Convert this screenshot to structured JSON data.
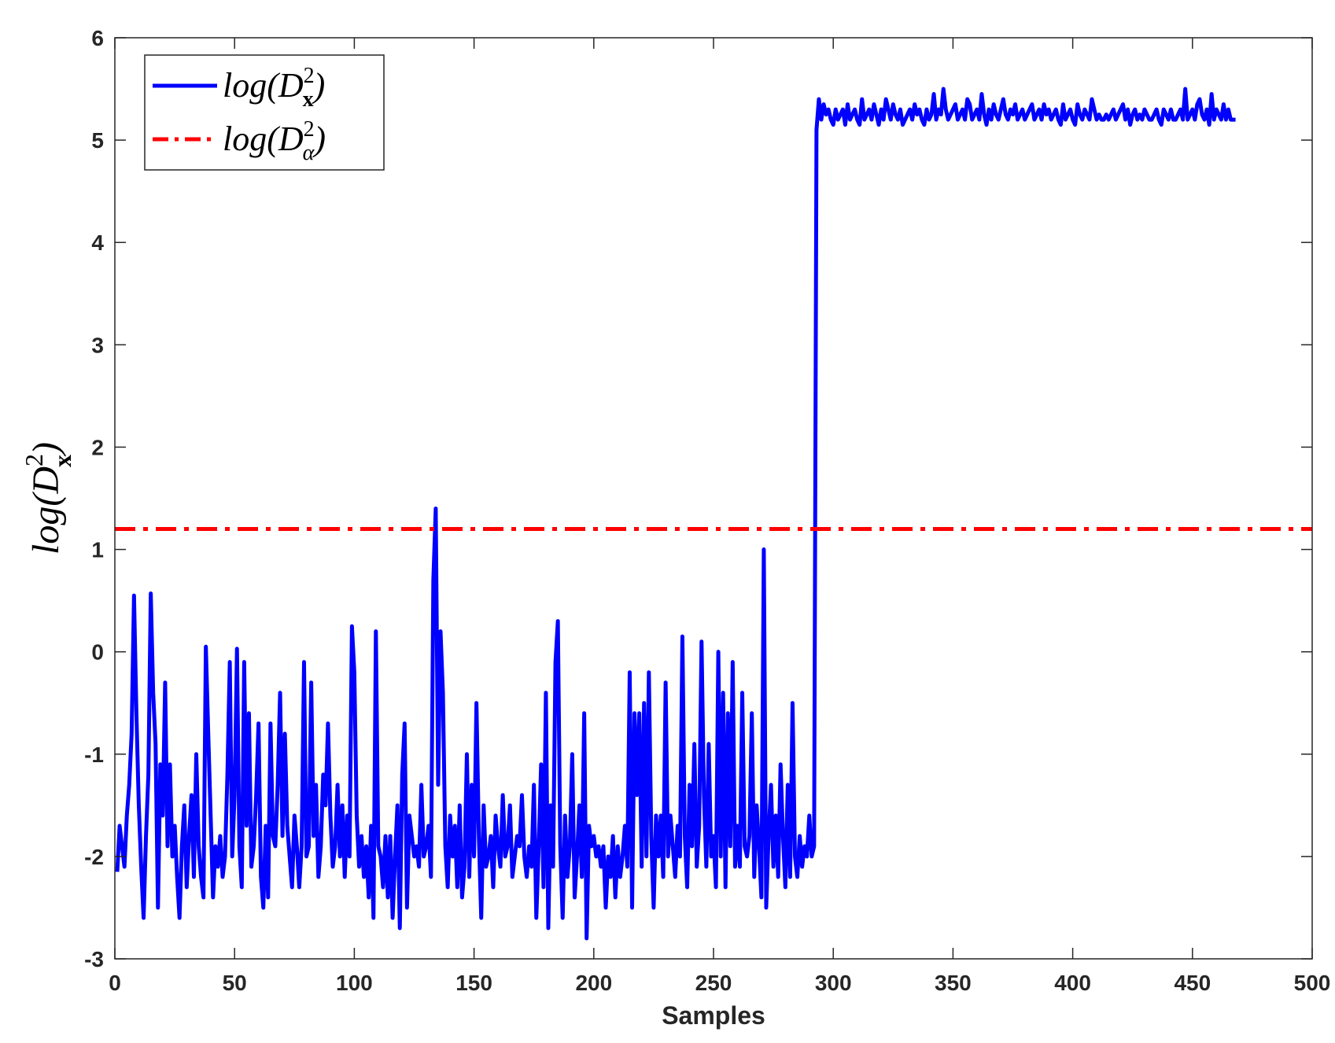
{
  "chart_data": {
    "type": "line",
    "xlabel": "Samples",
    "ylabel": {
      "base": "log(D",
      "sup": "2",
      "sub": "x",
      "close": ")"
    },
    "xlim": [
      0,
      500
    ],
    "ylim": [
      -3,
      6
    ],
    "xticks": [
      0,
      50,
      100,
      150,
      200,
      250,
      300,
      350,
      400,
      450,
      500
    ],
    "yticks": [
      -3,
      -2,
      -1,
      0,
      1,
      2,
      3,
      4,
      5,
      6
    ],
    "grid": false,
    "legend_position": "top-left",
    "series": [
      {
        "name": {
          "base": "log(D",
          "sup": "2",
          "sub": "x",
          "close": ")"
        },
        "style": "solid",
        "color": "#0000ff",
        "x_start": 1,
        "x_step": 1,
        "values": [
          -2.15,
          -1.7,
          -1.9,
          -2.1,
          -1.6,
          -1.3,
          -0.8,
          0.55,
          -0.6,
          -1.5,
          -2.1,
          -2.6,
          -1.8,
          -1.2,
          0.57,
          -0.4,
          -0.9,
          -2.5,
          -1.1,
          -1.6,
          -0.3,
          -1.9,
          -1.1,
          -2.0,
          -1.7,
          -2.2,
          -2.6,
          -1.9,
          -1.5,
          -2.3,
          -1.8,
          -1.4,
          -2.2,
          -1.0,
          -1.9,
          -2.2,
          -2.4,
          0.05,
          -0.8,
          -1.6,
          -2.4,
          -1.9,
          -2.1,
          -1.8,
          -2.2,
          -2.0,
          -1.2,
          -0.1,
          -2.0,
          -1.4,
          0.03,
          -1.9,
          -2.3,
          -0.1,
          -1.7,
          -0.6,
          -2.1,
          -1.9,
          -1.4,
          -0.7,
          -2.2,
          -2.5,
          -1.7,
          -2.4,
          -0.7,
          -1.8,
          -1.9,
          -1.3,
          -0.4,
          -1.8,
          -0.8,
          -1.7,
          -2.0,
          -2.3,
          -1.6,
          -1.9,
          -2.3,
          -1.9,
          -0.1,
          -2.0,
          -1.9,
          -0.3,
          -1.8,
          -1.3,
          -2.2,
          -1.9,
          -1.2,
          -1.5,
          -0.7,
          -1.6,
          -2.1,
          -1.9,
          -1.3,
          -2.0,
          -1.5,
          -2.2,
          -1.6,
          -2.0,
          0.25,
          -0.2,
          -1.6,
          -2.1,
          -1.8,
          -2.2,
          -1.9,
          -2.4,
          -1.7,
          -2.6,
          0.2,
          -1.9,
          -2.0,
          -2.3,
          -1.8,
          -2.4,
          -1.8,
          -2.6,
          -2.0,
          -1.5,
          -2.7,
          -1.2,
          -0.7,
          -2.5,
          -1.6,
          -1.8,
          -2.0,
          -1.9,
          -2.1,
          -1.3,
          -2.0,
          -1.9,
          -1.7,
          -2.2,
          0.7,
          1.4,
          -1.3,
          0.2,
          -0.4,
          -1.9,
          -2.3,
          -1.6,
          -2.0,
          -1.7,
          -2.3,
          -1.5,
          -2.4,
          -2.1,
          -1.0,
          -2.2,
          -1.3,
          -2.0,
          -0.5,
          -1.8,
          -2.6,
          -1.5,
          -2.1,
          -2.0,
          -1.8,
          -2.3,
          -1.6,
          -1.9,
          -2.1,
          -1.4,
          -2.0,
          -1.9,
          -1.5,
          -2.2,
          -2.0,
          -1.8,
          -1.9,
          -1.4,
          -2.0,
          -2.2,
          -1.9,
          -2.1,
          -1.3,
          -2.6,
          -1.9,
          -1.1,
          -2.3,
          -0.4,
          -2.7,
          -1.5,
          -2.1,
          -0.1,
          0.3,
          -1.9,
          -2.6,
          -1.6,
          -2.2,
          -1.9,
          -1.0,
          -2.4,
          -2.0,
          -1.5,
          -2.2,
          -0.6,
          -2.8,
          -1.7,
          -1.9,
          -1.8,
          -2.0,
          -1.9,
          -2.1,
          -1.9,
          -2.5,
          -2.0,
          -2.2,
          -1.8,
          -2.4,
          -1.9,
          -2.2,
          -2.0,
          -1.7,
          -2.1,
          -0.2,
          -2.5,
          -0.6,
          -1.4,
          -0.6,
          -2.1,
          -0.5,
          -2.0,
          -0.2,
          -1.8,
          -2.5,
          -1.6,
          -2.0,
          -1.6,
          -2.2,
          -0.3,
          -2.0,
          -1.6,
          -1.9,
          -2.2,
          -1.7,
          -2.0,
          0.15,
          -1.8,
          -2.3,
          -1.3,
          -1.9,
          -0.9,
          -2.1,
          -1.7,
          0.1,
          -1.4,
          -2.1,
          -0.9,
          -2.0,
          -1.8,
          -2.3,
          0.0,
          -2.0,
          -0.4,
          -2.3,
          -0.6,
          -1.9,
          -0.1,
          -2.1,
          -1.7,
          -2.1,
          -0.4,
          -1.9,
          -2.0,
          -1.8,
          -0.6,
          -2.2,
          -1.5,
          -1.9,
          -2.4,
          1.0,
          -2.5,
          -1.8,
          -1.3,
          -2.1,
          -1.6,
          -2.2,
          -1.1,
          -1.8,
          -2.3,
          -1.3,
          -2.2,
          -0.5,
          -2.0,
          -2.2,
          -1.8,
          -2.1,
          -1.9,
          -2.0,
          -1.6,
          -2.0,
          -1.9,
          5.1,
          5.4,
          5.2,
          5.35,
          5.25,
          5.3,
          5.2,
          5.15,
          5.3,
          5.2,
          5.25,
          5.3,
          5.15,
          5.35,
          5.2,
          5.25,
          5.3,
          5.2,
          5.15,
          5.4,
          5.2,
          5.25,
          5.3,
          5.2,
          5.35,
          5.25,
          5.15,
          5.3,
          5.2,
          5.4,
          5.3,
          5.2,
          5.35,
          5.25,
          5.2,
          5.3,
          5.15,
          5.2,
          5.25,
          5.3,
          5.2,
          5.35,
          5.25,
          5.3,
          5.2,
          5.15,
          5.3,
          5.2,
          5.25,
          5.45,
          5.2,
          5.3,
          5.25,
          5.5,
          5.3,
          5.2,
          5.25,
          5.3,
          5.35,
          5.2,
          5.25,
          5.3,
          5.2,
          5.4,
          5.35,
          5.2,
          5.25,
          5.3,
          5.2,
          5.45,
          5.25,
          5.15,
          5.3,
          5.2,
          5.35,
          5.25,
          5.2,
          5.3,
          5.4,
          5.25,
          5.2,
          5.3,
          5.25,
          5.35,
          5.2,
          5.25,
          5.3,
          5.2,
          5.25,
          5.3,
          5.35,
          5.2,
          5.25,
          5.3,
          5.2,
          5.35,
          5.25,
          5.3,
          5.2,
          5.25,
          5.3,
          5.2,
          5.15,
          5.35,
          5.2,
          5.25,
          5.3,
          5.2,
          5.15,
          5.35,
          5.25,
          5.2,
          5.3,
          5.25,
          5.2,
          5.4,
          5.3,
          5.2,
          5.25,
          5.2,
          5.2,
          5.25,
          5.2,
          5.25,
          5.3,
          5.2,
          5.25,
          5.3,
          5.35,
          5.2,
          5.3,
          5.15,
          5.25,
          5.3,
          5.2,
          5.25,
          5.2,
          5.3,
          5.25,
          5.2,
          5.2,
          5.25,
          5.3,
          5.2,
          5.15,
          5.3,
          5.25,
          5.2,
          5.3,
          5.2,
          5.2,
          5.25,
          5.3,
          5.2,
          5.5,
          5.2,
          5.25,
          5.3,
          5.2,
          5.35,
          5.4,
          5.25,
          5.2,
          5.3,
          5.15,
          5.45,
          5.2,
          5.3,
          5.25,
          5.2,
          5.35,
          5.2,
          5.3,
          5.2,
          5.2,
          5.2
        ]
      },
      {
        "name": {
          "base": "log(D",
          "sup": "2",
          "sub": "α",
          "close": ")"
        },
        "style": "dash-dot",
        "color": "#ff0000",
        "x": [
          0,
          500
        ],
        "values": [
          1.2,
          1.2
        ]
      }
    ]
  }
}
